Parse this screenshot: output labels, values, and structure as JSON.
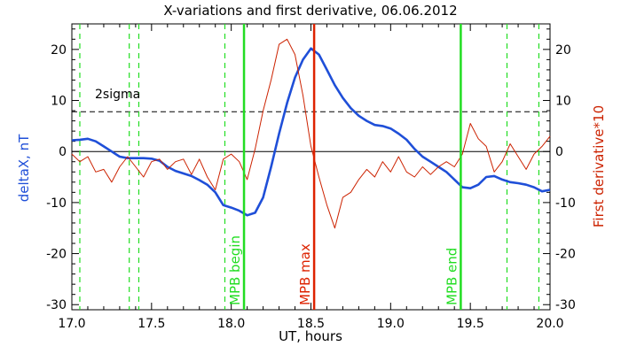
{
  "chart_data": {
    "type": "line",
    "title": "X-variations and first derivative, 06.06.2012",
    "xlabel": "UT, hours",
    "ylabel_left": "deltaX, nT",
    "ylabel_right": "First derivative*10",
    "xlim": [
      17.0,
      20.0
    ],
    "ylim": [
      -31,
      25
    ],
    "x_ticks": [
      17.0,
      17.5,
      18.0,
      18.5,
      19.0,
      19.5,
      20.0
    ],
    "x_tick_labels": [
      "17.0",
      "17.5",
      "18.0",
      "18.5",
      "19.0",
      "19.5",
      "20.0"
    ],
    "y_ticks": [
      -30,
      -20,
      -10,
      0,
      10,
      20
    ],
    "y_tick_labels": [
      "-30",
      "-20",
      "-10",
      "0",
      "10",
      "20"
    ],
    "grid": false,
    "sigma_level": 7.8,
    "sigma_label": "2sigma",
    "colors": {
      "deltaX": "#1f4fd8",
      "derivative": "#cc2200",
      "markers": "#22dd22",
      "max_marker": "#dd2200",
      "left_label": "#1f4fd8",
      "right_label": "#cc2200"
    },
    "markers": [
      {
        "x": 18.08,
        "label": "MPB begin",
        "kind": "green"
      },
      {
        "x": 18.52,
        "label": "MPB max",
        "kind": "red"
      },
      {
        "x": 19.44,
        "label": "MPB end",
        "kind": "green"
      }
    ],
    "dashed_markers": [
      17.05,
      17.36,
      17.42,
      17.96,
      19.73,
      19.93
    ],
    "series": [
      {
        "key": "deltaX",
        "x": [
          17.0,
          17.05,
          17.1,
          17.15,
          17.2,
          17.25,
          17.3,
          17.35,
          17.4,
          17.45,
          17.5,
          17.55,
          17.6,
          17.65,
          17.7,
          17.75,
          17.8,
          17.85,
          17.9,
          17.95,
          18.0,
          18.05,
          18.1,
          18.15,
          18.2,
          18.25,
          18.3,
          18.35,
          18.4,
          18.45,
          18.5,
          18.55,
          18.6,
          18.65,
          18.7,
          18.75,
          18.8,
          18.85,
          18.9,
          18.95,
          19.0,
          19.05,
          19.1,
          19.15,
          19.2,
          19.25,
          19.3,
          19.35,
          19.4,
          19.45,
          19.5,
          19.55,
          19.6,
          19.65,
          19.7,
          19.75,
          19.8,
          19.85,
          19.9,
          19.95,
          20.0
        ],
        "values": [
          2.2,
          2.3,
          2.5,
          2.0,
          1.0,
          0.0,
          -1.0,
          -1.3,
          -1.3,
          -1.3,
          -1.4,
          -1.8,
          -3.0,
          -3.8,
          -4.3,
          -4.8,
          -5.6,
          -6.5,
          -8.0,
          -10.5,
          -11.0,
          -11.6,
          -12.5,
          -12.0,
          -9.0,
          -3.0,
          3.5,
          9.5,
          14.5,
          18.0,
          20.2,
          19.0,
          16.0,
          13.0,
          10.5,
          8.5,
          7.0,
          6.0,
          5.2,
          5.0,
          4.5,
          3.5,
          2.3,
          0.5,
          -1.0,
          -2.0,
          -3.0,
          -4.0,
          -5.5,
          -7.0,
          -7.2,
          -6.5,
          -5.0,
          -4.8,
          -5.5,
          -6.0,
          -6.2,
          -6.5,
          -7.0,
          -7.8,
          -7.5
        ]
      },
      {
        "key": "derivative",
        "x": [
          17.0,
          17.05,
          17.1,
          17.15,
          17.2,
          17.25,
          17.3,
          17.35,
          17.4,
          17.45,
          17.5,
          17.55,
          17.6,
          17.65,
          17.7,
          17.75,
          17.8,
          17.85,
          17.9,
          17.95,
          18.0,
          18.05,
          18.1,
          18.15,
          18.2,
          18.25,
          18.3,
          18.35,
          18.4,
          18.45,
          18.5,
          18.55,
          18.6,
          18.65,
          18.7,
          18.75,
          18.8,
          18.85,
          18.9,
          18.95,
          19.0,
          19.05,
          19.1,
          19.15,
          19.2,
          19.25,
          19.3,
          19.35,
          19.4,
          19.45,
          19.5,
          19.55,
          19.6,
          19.65,
          19.7,
          19.75,
          19.8,
          19.85,
          19.9,
          19.95,
          20.0
        ],
        "values": [
          -0.5,
          -2.0,
          -1.0,
          -4.0,
          -3.5,
          -6.0,
          -3.0,
          -1.0,
          -3.0,
          -5.0,
          -2.0,
          -1.5,
          -3.5,
          -2.0,
          -1.5,
          -4.5,
          -1.5,
          -5.0,
          -7.5,
          -1.5,
          -0.5,
          -2.0,
          -5.5,
          0.5,
          8.0,
          14.0,
          21.0,
          22.0,
          19.0,
          11.0,
          1.0,
          -5.0,
          -10.5,
          -15.0,
          -9.0,
          -8.0,
          -5.5,
          -3.5,
          -5.0,
          -2.0,
          -4.0,
          -1.0,
          -4.0,
          -5.0,
          -3.0,
          -4.5,
          -3.0,
          -2.0,
          -3.0,
          -0.5,
          5.5,
          2.5,
          1.0,
          -4.0,
          -2.0,
          1.5,
          -1.0,
          -3.5,
          -0.5,
          1.0,
          3.0
        ]
      }
    ]
  }
}
